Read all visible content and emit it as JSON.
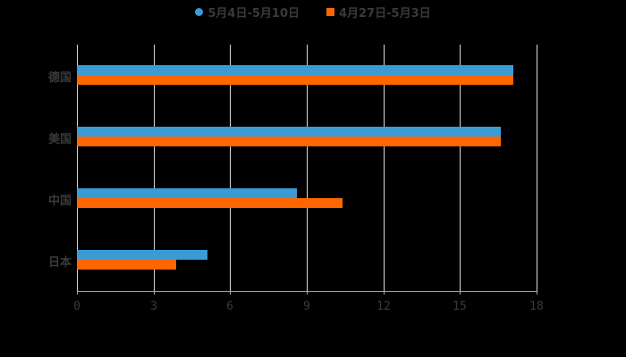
{
  "legend": {
    "series_a": "5月4日-5月10日",
    "series_b": "4月27日-5月3日"
  },
  "colors": {
    "series_a": "#3a9bd5",
    "series_b": "#ff6600",
    "grid": "#d9d9d9",
    "text": "#3a3a3a"
  },
  "chart_data": {
    "type": "bar",
    "orientation": "horizontal",
    "title": "",
    "xlabel": "",
    "ylabel": "",
    "categories": [
      "德国",
      "美国",
      "中国",
      "日本"
    ],
    "series": [
      {
        "name": "5月4日-5月10日",
        "values": [
          17.1,
          16.6,
          8.6,
          5.1
        ]
      },
      {
        "name": "4月27日-5月3日",
        "values": [
          17.1,
          16.6,
          10.4,
          3.9
        ]
      }
    ],
    "xlim": [
      0,
      18
    ],
    "xticks": [
      0,
      3,
      6,
      9,
      12,
      15,
      18
    ],
    "grid": true,
    "legend_position": "top"
  }
}
